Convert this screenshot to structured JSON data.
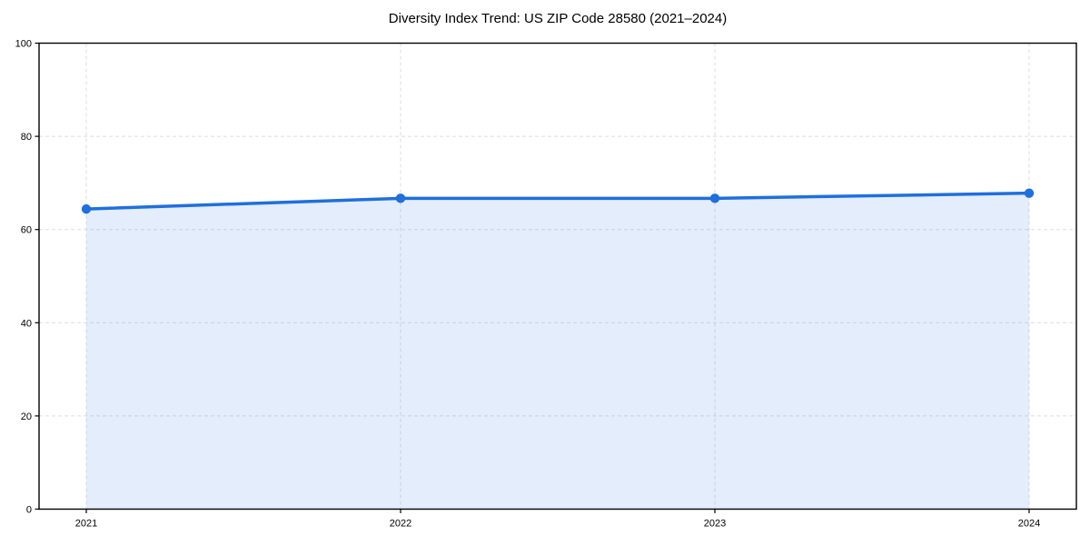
{
  "chart_data": {
    "type": "line",
    "title": "Diversity Index Trend: US ZIP Code 28580 (2021–2024)",
    "x": [
      "2021",
      "2022",
      "2023",
      "2024"
    ],
    "values": [
      64.4,
      66.7,
      66.7,
      67.8
    ],
    "xlabel": "",
    "ylabel": "",
    "ylim": [
      0,
      100
    ],
    "yticks": [
      0,
      20,
      40,
      60,
      80,
      100
    ],
    "grid": "dashed-both-axes",
    "legend": "none",
    "area_fill": true,
    "marker": "circle",
    "colors": {
      "line": "#1f6fdd",
      "marker": "#1f6fdd",
      "fill": "rgba(31, 111, 221, 0.12)",
      "grid": "#dedede",
      "spine": "#000000",
      "tick": "#000000",
      "background": "#ffffff"
    }
  }
}
